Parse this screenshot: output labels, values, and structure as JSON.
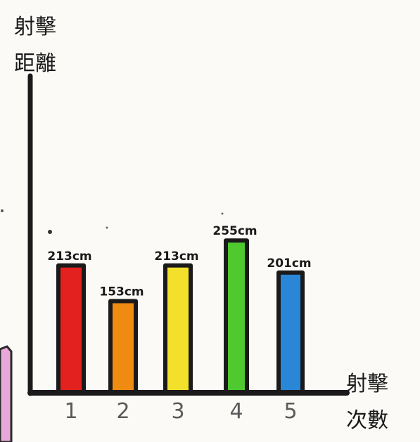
{
  "chart_data": {
    "type": "bar",
    "title": "",
    "ylabel": "射擊距離",
    "xlabel": "射擊次數",
    "categories": [
      "1",
      "2",
      "3",
      "4",
      "5"
    ],
    "values": [
      213,
      153,
      213,
      255,
      201
    ],
    "data_labels": [
      "213cm",
      "153cm",
      "213cm",
      "255cm",
      "201cm"
    ],
    "unit": "cm",
    "bar_colors": [
      "#e3211f",
      "#f08b12",
      "#f3e02a",
      "#4fc930",
      "#2a86d6"
    ],
    "ylim": [
      0,
      520
    ],
    "grid": false,
    "legend": "none"
  }
}
